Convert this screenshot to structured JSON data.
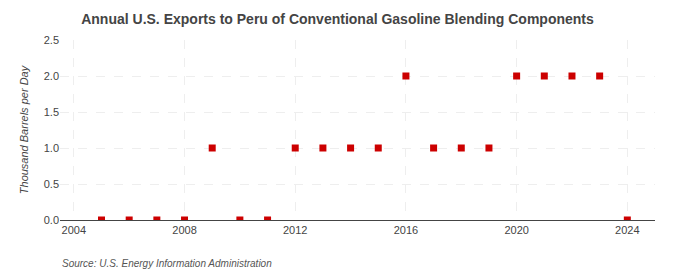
{
  "chart_data": {
    "type": "scatter",
    "title": "Annual U.S. Exports to Peru of Conventional Gasoline Blending Components",
    "ylabel": "Thousand Barrels per Day",
    "annotations": [
      "Source: U.S. Energy Information Administration"
    ],
    "x": [
      2005,
      2006,
      2007,
      2008,
      2009,
      2010,
      2011,
      2012,
      2013,
      2014,
      2015,
      2016,
      2017,
      2018,
      2019,
      2020,
      2021,
      2022,
      2023,
      2024
    ],
    "values": [
      0.0,
      0.0,
      0.0,
      0.0,
      1.0,
      0.0,
      0.0,
      1.0,
      1.0,
      1.0,
      1.0,
      2.0,
      1.0,
      1.0,
      1.0,
      2.0,
      2.0,
      2.0,
      2.0,
      0.0
    ],
    "color": "#cc0000",
    "marker": "square",
    "xlim": [
      2003.5,
      2025.0
    ],
    "ylim": [
      0.0,
      2.5
    ],
    "xticks": [
      2004,
      2008,
      2012,
      2016,
      2020,
      2024
    ],
    "yticks": [
      {
        "value": 0.0,
        "label": "0.0"
      },
      0.5,
      {
        "value": 1.0,
        "label": "1.0"
      },
      1.5,
      {
        "value": 2.0,
        "label": "2.0"
      },
      2.5
    ],
    "grid": true
  }
}
